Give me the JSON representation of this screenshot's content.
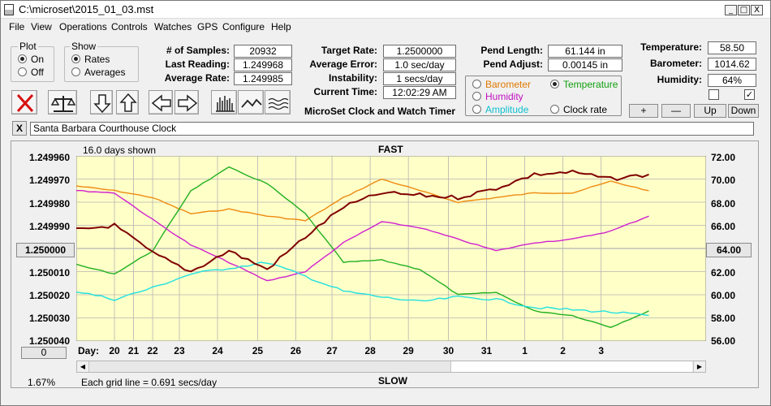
{
  "window": {
    "title": "C:\\microset\\2015_01_03.mst",
    "min_glyph": "_",
    "max_glyph": "□",
    "close_glyph": "X"
  },
  "menu": [
    "File",
    "View",
    "Operations",
    "Controls",
    "Watches",
    "GPS",
    "Configure",
    "Help"
  ],
  "plot_group": {
    "title": "Plot",
    "options": [
      "On",
      "Off"
    ],
    "selected": "On"
  },
  "show_group": {
    "title": "Show",
    "options": [
      "Rates",
      "Averages"
    ],
    "selected": "Rates"
  },
  "stats": {
    "samples_label": "# of Samples:",
    "samples": "20932",
    "last_reading_label": "Last Reading:",
    "last_reading": "1.249968",
    "average_rate_label": "Average Rate:",
    "average_rate": "1.249985"
  },
  "timing": {
    "target_rate_label": "Target Rate:",
    "target_rate": "1.2500000",
    "average_error_label": "Average Error:",
    "average_error": "1.0 sec/day",
    "instability_label": "Instability:",
    "instability": "1 secs/day",
    "current_time_label": "Current Time:",
    "current_time": "12:02:29 AM",
    "app_caption": "MicroSet Clock and Watch Timer"
  },
  "pendulum": {
    "length_label": "Pend Length:",
    "length": "61.144 in",
    "adjust_label": "Pend Adjust:",
    "adjust": "0.00145 in"
  },
  "sensor_select": {
    "barometer": "Barometer",
    "temperature": "Temperature",
    "humidity": "Humidity",
    "amplitude": "Amplitude",
    "clock_rate": "Clock rate",
    "selected": "Temperature"
  },
  "environment": {
    "temperature_label": "Temperature:",
    "temperature": "58.50",
    "barometer_label": "Barometer:",
    "barometer": "1014.62",
    "humidity_label": "Humidity:",
    "humidity": "64%",
    "check1": false,
    "check2": true
  },
  "scale_buttons": {
    "plus": "+",
    "minus": "—",
    "up": "Up",
    "down": "Down"
  },
  "clock_name": {
    "close_glyph": "X",
    "value": "Santa Barbara Courthouse Clock"
  },
  "colors": {
    "plot_bg": "#ffffc8",
    "rate": "#800000",
    "temperature": "#20b020",
    "humidity": "#d020d0",
    "barometer": "#ee8a10",
    "amplitude": "#20e0e0",
    "barometer_label": "#e07800",
    "temperature_label": "#10a010",
    "humidity_label": "#c010c0",
    "amplitude_label": "#10c0d0",
    "grid": "#b4b4b4"
  },
  "chart_data": {
    "type": "line",
    "top_label": "FAST",
    "bottom_label": "SLOW",
    "days_shown": "16.0 days shown",
    "grid_note": "Each grid line = 0.691 secs/day",
    "percent": "1.67%",
    "scroll_value": "0",
    "left_center_value": "1.250000",
    "right_center_value": "64.00",
    "x_prefix": "Day:",
    "left_axis": {
      "ticks": [
        "1.249960",
        "1.249970",
        "1.249980",
        "1.249990",
        "1.250000",
        "1.250010",
        "1.250020",
        "1.250030",
        "1.250040"
      ],
      "range": [
        1.24996,
        1.25004
      ],
      "inverted": true
    },
    "right_axis": {
      "ticks": [
        "72.00",
        "70.00",
        "68.00",
        "66.00",
        "64.00",
        "62.00",
        "60.00",
        "58.00",
        "56.00"
      ],
      "range": [
        56,
        72
      ]
    },
    "x_axis": {
      "ticks": [
        "20",
        "21",
        "22",
        "23",
        "24",
        "25",
        "26",
        "27",
        "28",
        "29",
        "30",
        "31",
        "1",
        "2",
        "3"
      ],
      "positions": [
        1.0,
        1.5,
        2.0,
        2.7,
        3.7,
        4.75,
        5.75,
        6.7,
        7.7,
        8.7,
        9.75,
        10.75,
        11.75,
        12.75,
        13.75
      ]
    },
    "series": [
      {
        "name": "Barometer",
        "axis": "left",
        "color_key": "barometer",
        "x": [
          0,
          1,
          2,
          3,
          4,
          5,
          6,
          7,
          8,
          9,
          10,
          11,
          12,
          13,
          14,
          15
        ],
        "y": [
          1.249973,
          1.249975,
          1.249978,
          1.249985,
          1.249983,
          1.249986,
          1.249988,
          1.249978,
          1.24997,
          1.249975,
          1.24998,
          1.249978,
          1.249976,
          1.249976,
          1.249971,
          1.249975
        ]
      },
      {
        "name": "Temperature",
        "axis": "right",
        "color_key": "temperature",
        "x": [
          0,
          1,
          2,
          3,
          4,
          5,
          6,
          7,
          8,
          9,
          10,
          11,
          12,
          13,
          14,
          15
        ],
        "y": [
          62.6,
          61.8,
          63.8,
          69.0,
          71.0,
          69.6,
          67.0,
          62.8,
          63.0,
          62.2,
          60.0,
          60.2,
          58.6,
          58.2,
          57.2,
          58.6
        ]
      },
      {
        "name": "Humidity",
        "axis": "right",
        "color_key": "humidity",
        "x": [
          0,
          1,
          2,
          3,
          4,
          5,
          6,
          7,
          8,
          9,
          10,
          11,
          12,
          13,
          14,
          15
        ],
        "y": [
          69.0,
          68.8,
          66.5,
          64.3,
          62.8,
          61.2,
          62.0,
          64.5,
          66.3,
          65.8,
          64.8,
          63.8,
          64.5,
          64.8,
          65.5,
          66.8
        ]
      },
      {
        "name": "Amplitude",
        "axis": "right",
        "color_key": "amplitude",
        "x": [
          0,
          1,
          2,
          3,
          4,
          5,
          6,
          7,
          8,
          9,
          10,
          11,
          12,
          13,
          14,
          15
        ],
        "y": [
          60.3,
          59.6,
          60.6,
          61.8,
          62.3,
          62.8,
          61.6,
          60.3,
          59.8,
          59.4,
          59.8,
          59.6,
          58.9,
          58.7,
          58.5,
          58.2
        ]
      },
      {
        "name": "Clock rate",
        "axis": "left",
        "color_key": "rate",
        "x": [
          0,
          1,
          2,
          3,
          4,
          5,
          6,
          7,
          8,
          9,
          10,
          11,
          12,
          13,
          14,
          15
        ],
        "y": [
          1.249992,
          1.24999,
          1.250002,
          1.25001,
          1.250001,
          1.250009,
          1.249995,
          1.249982,
          1.249976,
          1.249977,
          1.249978,
          1.249974,
          1.249968,
          1.249967,
          1.24997,
          1.249968
        ]
      }
    ]
  }
}
